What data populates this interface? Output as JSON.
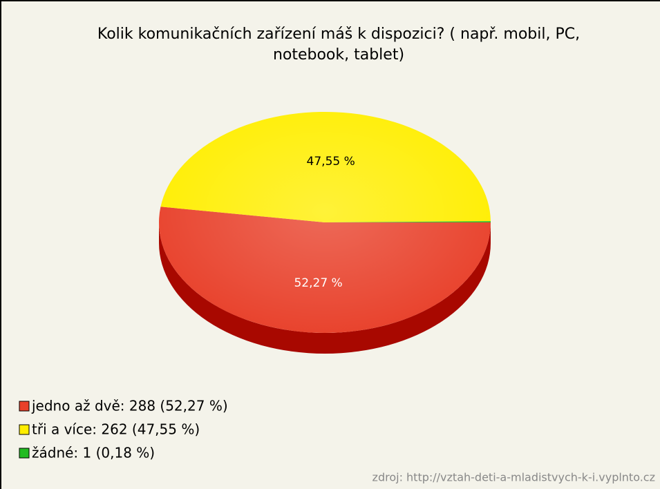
{
  "chart_data": {
    "type": "pie",
    "title": [
      "Kolik komunikačních zařízení máš k dispozici? ( např. mobil, PC,",
      "notebook, tablet)"
    ],
    "categories": [
      "jedno až dvě",
      "tři a více",
      "žádné"
    ],
    "values": [
      52.27,
      47.55,
      0.18
    ],
    "value_labels": [
      "52,27 %",
      "47,55 %",
      null
    ],
    "colors": [
      "#e8402a",
      "#ffee00",
      "#22bb22"
    ],
    "side_colors": [
      "#a80800",
      "#c8b400",
      "#118811"
    ],
    "legend_labels": [
      "jedno až dvě: 288 (52,27 %)",
      "tři a více: 262 (47,55 %)",
      "žádné: 1 (0,18 %)"
    ],
    "legend": "bottom-left",
    "source": "zdroj: http://vztah-deti-a-mladistvych-k-i.vyplnto.cz"
  }
}
